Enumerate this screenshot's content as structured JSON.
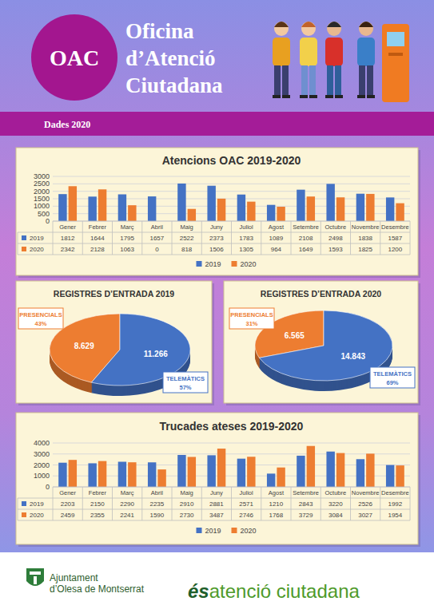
{
  "header": {
    "logo": "OAC",
    "title": [
      "Oficina",
      "d’Atenció",
      "Ciutadana"
    ],
    "subtitle": "Dades 2020"
  },
  "chart_data": [
    {
      "type": "bar",
      "title": "Atencions OAC 2019-2020",
      "categories": [
        "Gener",
        "Febrer",
        "Març",
        "Abril",
        "Maig",
        "Juny",
        "Juliol",
        "Agost",
        "Setembre",
        "Octubre",
        "Novembre",
        "Desembre"
      ],
      "series": [
        {
          "name": "2019",
          "color": "#4472c4",
          "values": [
            1812,
            1644,
            1795,
            1657,
            2522,
            2373,
            1783,
            1089,
            2108,
            2498,
            1838,
            1587
          ]
        },
        {
          "name": "2020",
          "color": "#ed7d31",
          "values": [
            2342,
            2128,
            1063,
            0,
            818,
            1506,
            1305,
            964,
            1649,
            1593,
            1825,
            1200
          ]
        }
      ],
      "ylim": [
        0,
        3000
      ],
      "yticks": [
        0,
        500,
        1000,
        1500,
        2000,
        2500,
        3000
      ],
      "grid": true,
      "legend": "bottom"
    },
    {
      "type": "pie",
      "title": "REGISTRES D’ENTRADA 2019",
      "categories": [
        "PRESENCIALS",
        "TELEMÀTICS"
      ],
      "values": [
        8629,
        11266
      ],
      "value_labels": [
        "8.629",
        "11.266"
      ],
      "percent_labels": [
        "43%",
        "57%"
      ],
      "colors": [
        "#ed7d31",
        "#4472c4"
      ],
      "data_labels": true
    },
    {
      "type": "pie",
      "title": "REGISTRES D’ENTRADA 2020",
      "categories": [
        "PRESENCIALS",
        "TELEMÀTICS"
      ],
      "values": [
        6565,
        14843
      ],
      "value_labels": [
        "6.565",
        "14.843"
      ],
      "percent_labels": [
        "31%",
        "69%"
      ],
      "colors": [
        "#ed7d31",
        "#4472c4"
      ],
      "data_labels": true
    },
    {
      "type": "bar",
      "title": "Trucades ateses 2019-2020",
      "categories": [
        "Gener",
        "Febrer",
        "Març",
        "Abril",
        "Maig",
        "Juny",
        "Juliol",
        "Agost",
        "Setembre",
        "Octubre",
        "Novembre",
        "Desembre"
      ],
      "series": [
        {
          "name": "2019",
          "color": "#4472c4",
          "values": [
            2203,
            2150,
            2290,
            2235,
            2910,
            2881,
            2571,
            1210,
            2843,
            3220,
            2526,
            1992
          ]
        },
        {
          "name": "2020",
          "color": "#ed7d31",
          "values": [
            2459,
            2355,
            2241,
            1590,
            2730,
            3487,
            2746,
            1768,
            3729,
            3084,
            3027,
            1954
          ]
        }
      ],
      "ylim": [
        0,
        4000
      ],
      "yticks": [
        0,
        1000,
        2000,
        3000,
        4000
      ],
      "grid": true,
      "legend": "bottom"
    }
  ],
  "footer": {
    "institution": [
      "Ajuntament",
      "d’Olesa de Montserrat"
    ],
    "brand": [
      "és",
      "atenció ciutadana"
    ]
  }
}
